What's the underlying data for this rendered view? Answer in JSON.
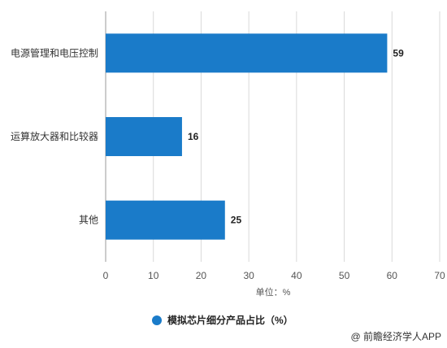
{
  "chart_data": {
    "type": "bar",
    "orientation": "horizontal",
    "categories": [
      "电源管理和电压控制",
      "运算放大器和比较器",
      "其他"
    ],
    "series": [
      {
        "name": "模拟芯片细分产品占比（%）",
        "values": [
          59,
          16,
          25
        ]
      }
    ],
    "xlabel": "单位：%",
    "xlim": [
      0,
      70
    ],
    "xticks": [
      0,
      10,
      20,
      30,
      40,
      50,
      60,
      70
    ],
    "grid": "vertical",
    "legend": "bottom-center",
    "colors": {
      "bar": "#1a7bc9",
      "grid": "#d9d9d9"
    }
  },
  "source": "@ 前瞻经济学人APP"
}
